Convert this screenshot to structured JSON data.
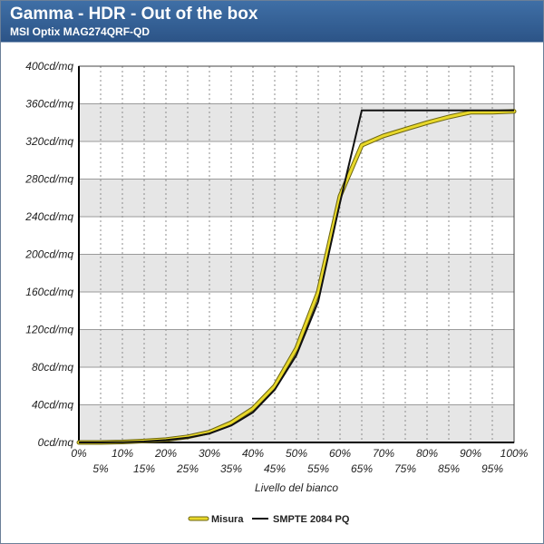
{
  "header": {
    "title": "Gamma - HDR - Out of the box",
    "subtitle": "MSI Optix MAG274QRF-QD"
  },
  "colors": {
    "header_top": "#3f6fa6",
    "header_bottom": "#2c5487",
    "band": "#e6e6e6",
    "misura": "#e8d82a",
    "smpte": "#111111"
  },
  "chart_data": {
    "type": "line",
    "xlabel": "Livello del bianco",
    "ylabel": "",
    "x_unit": "%",
    "y_unit": "cd/mq",
    "ylim": [
      0,
      400
    ],
    "xlim": [
      0,
      100
    ],
    "x": [
      0,
      5,
      10,
      15,
      20,
      25,
      30,
      35,
      40,
      45,
      50,
      55,
      60,
      65,
      70,
      75,
      80,
      85,
      90,
      95,
      100
    ],
    "x_tick_labels": [
      "0%",
      "5%",
      "10%",
      "15%",
      "20%",
      "25%",
      "30%",
      "35%",
      "40%",
      "45%",
      "50%",
      "55%",
      "60%",
      "65%",
      "70%",
      "75%",
      "80%",
      "85%",
      "90%",
      "95%",
      "100%"
    ],
    "y_ticks": [
      0,
      40,
      80,
      120,
      160,
      200,
      240,
      280,
      320,
      360,
      400
    ],
    "y_tick_labels": [
      "0cd/mq",
      "40cd/mq",
      "80cd/mq",
      "120cd/mq",
      "160cd/mq",
      "200cd/mq",
      "240cd/mq",
      "280cd/mq",
      "320cd/mq",
      "360cd/mq",
      "400cd/mq"
    ],
    "grid": true,
    "legend_position": "bottom",
    "series": [
      {
        "name": "Misura",
        "color": "#e8d82a",
        "values": [
          0,
          0,
          0.5,
          1.5,
          3,
          6,
          11,
          21,
          36,
          60,
          100,
          160,
          262,
          316,
          326,
          333,
          340,
          346,
          351,
          351,
          352
        ]
      },
      {
        "name": "SMPTE 2084 PQ",
        "color": "#111111",
        "values": [
          0,
          0,
          0.3,
          1,
          2.5,
          5,
          9.5,
          18,
          32,
          56,
          93,
          150,
          255,
          353,
          353,
          353,
          353,
          353,
          353,
          353,
          353
        ]
      }
    ]
  }
}
